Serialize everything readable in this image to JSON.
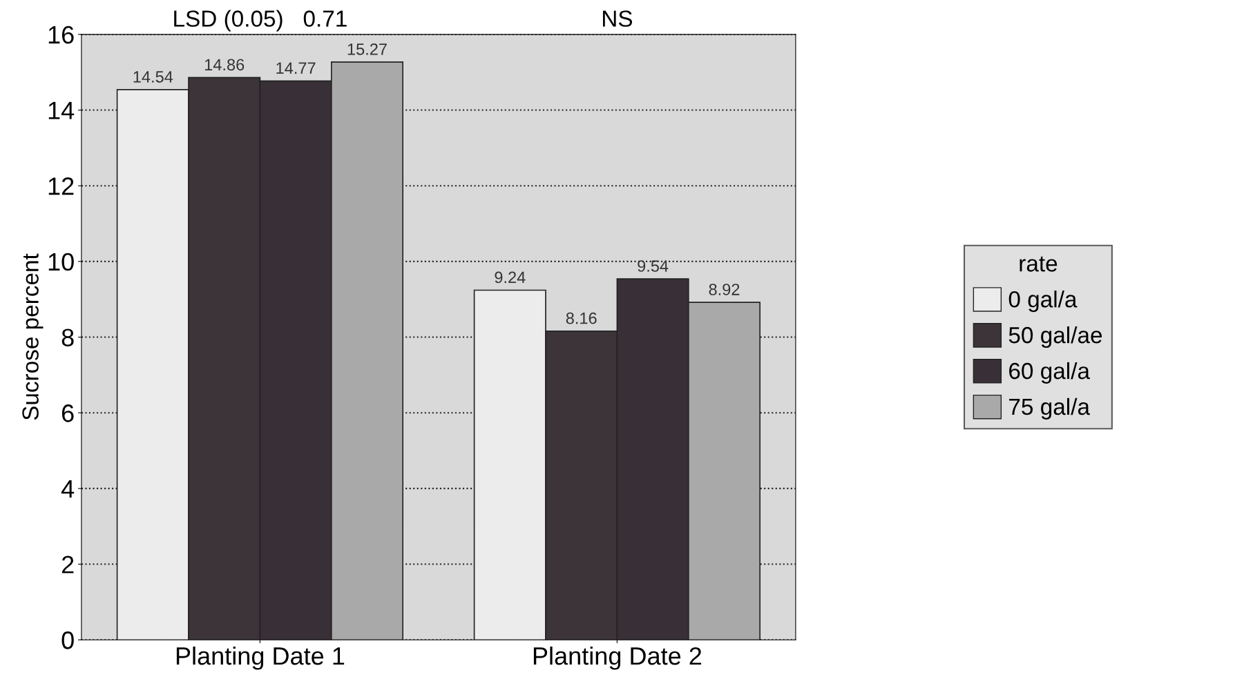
{
  "chart_data": {
    "type": "bar",
    "ylabel": "Sucrose percent",
    "legend_title": "rate",
    "categories": [
      "Planting Date 1",
      "Planting Date 2"
    ],
    "series": [
      {
        "name": "0 gal/a",
        "color": "#ececec",
        "values": [
          14.54,
          9.24
        ]
      },
      {
        "name": "50 gal/ae",
        "color": "#3c3439",
        "values": [
          14.86,
          8.16
        ]
      },
      {
        "name": "60 gal/a",
        "color": "#383036",
        "values": [
          14.77,
          9.54
        ]
      },
      {
        "name": "75 gal/a",
        "color": "#a9a9a9",
        "values": [
          15.27,
          8.92
        ]
      }
    ],
    "ylim": [
      0,
      16
    ],
    "yticks": [
      0,
      2,
      4,
      6,
      8,
      10,
      12,
      14,
      16
    ],
    "grid": "y",
    "legend": "right",
    "data_labels": true,
    "annotations": [
      "LSD (0.05)   0.71",
      "NS"
    ]
  }
}
